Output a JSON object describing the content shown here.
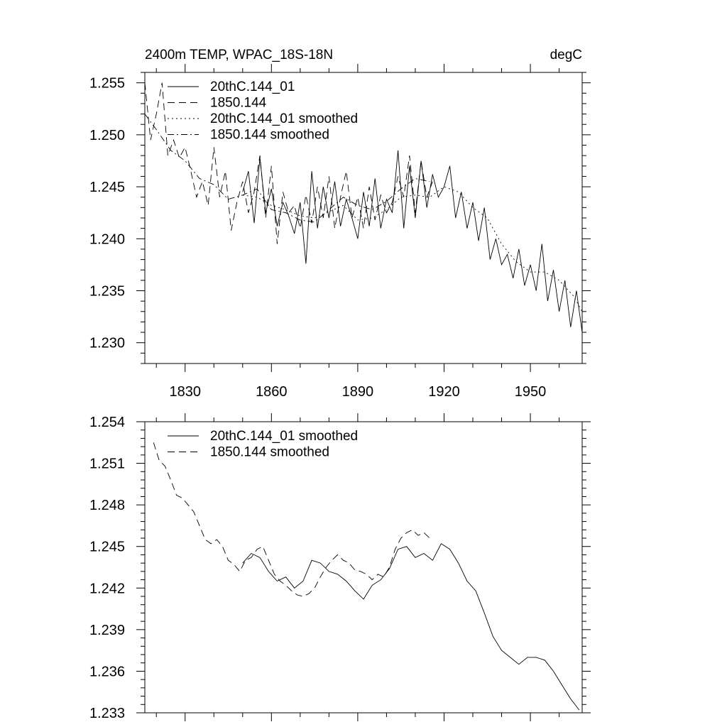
{
  "chart_data": [
    {
      "type": "line",
      "title": "2400m TEMP, WPAC_18S-18N",
      "units_label": "degC",
      "xlabel": "",
      "ylabel": "",
      "xlim": [
        1816,
        1968
      ],
      "ylim": [
        1.228,
        1.256
      ],
      "xticks": [
        1830,
        1860,
        1890,
        1920,
        1950
      ],
      "yticks": [
        1.23,
        1.235,
        1.24,
        1.245,
        1.25,
        1.255
      ],
      "ytick_labels": [
        "1.230",
        "1.235",
        "1.240",
        "1.245",
        "1.250",
        "1.255"
      ],
      "legend": [
        "20thC.144_01",
        "1850.144",
        "20thC.144_01 smoothed",
        "1850.144 smoothed"
      ],
      "series": [
        {
          "name": "20thC.144_01",
          "dash": "solid",
          "x": [
            1850,
            1852,
            1854,
            1856,
            1858,
            1860,
            1862,
            1864,
            1866,
            1868,
            1870,
            1872,
            1874,
            1876,
            1878,
            1880,
            1882,
            1884,
            1886,
            1888,
            1890,
            1892,
            1894,
            1896,
            1898,
            1900,
            1902,
            1904,
            1906,
            1908,
            1910,
            1912,
            1914,
            1916,
            1918,
            1920,
            1922,
            1924,
            1926,
            1928,
            1930,
            1932,
            1934,
            1936,
            1938,
            1940,
            1942,
            1944,
            1946,
            1948,
            1950,
            1952,
            1954,
            1956,
            1958,
            1960,
            1962,
            1964,
            1966,
            1968
          ],
          "values": [
            1.2445,
            1.2465,
            1.2415,
            1.2478,
            1.2425,
            1.2448,
            1.2412,
            1.2435,
            1.2422,
            1.2405,
            1.2435,
            1.2376,
            1.2465,
            1.241,
            1.245,
            1.242,
            1.2455,
            1.2412,
            1.2438,
            1.242,
            1.24,
            1.2445,
            1.2412,
            1.2458,
            1.241,
            1.2438,
            1.2425,
            1.2485,
            1.241,
            1.247,
            1.242,
            1.2475,
            1.243,
            1.2462,
            1.244,
            1.245,
            1.247,
            1.242,
            1.2445,
            1.241,
            1.2435,
            1.2398,
            1.243,
            1.238,
            1.24,
            1.2375,
            1.2385,
            1.2362,
            1.239,
            1.2355,
            1.2375,
            1.235,
            1.2395,
            1.234,
            1.237,
            1.233,
            1.236,
            1.2315,
            1.235,
            1.231
          ]
        },
        {
          "name": "1850.144",
          "dash": "long-dash",
          "x": [
            1816,
            1818,
            1820,
            1822,
            1824,
            1826,
            1828,
            1830,
            1832,
            1834,
            1836,
            1838,
            1840,
            1842,
            1844,
            1846,
            1848,
            1850,
            1852,
            1854,
            1856,
            1858,
            1860,
            1862,
            1864,
            1866,
            1868,
            1870,
            1872,
            1874,
            1876,
            1878,
            1880,
            1882,
            1884,
            1886,
            1888,
            1890,
            1892,
            1894,
            1896,
            1898,
            1900,
            1902,
            1904,
            1906,
            1908,
            1910,
            1912,
            1914,
            1916
          ],
          "values": [
            1.255,
            1.2495,
            1.252,
            1.255,
            1.248,
            1.2495,
            1.2478,
            1.2488,
            1.2465,
            1.244,
            1.2455,
            1.2432,
            1.2488,
            1.244,
            1.2465,
            1.2408,
            1.2435,
            1.2455,
            1.2425,
            1.2445,
            1.248,
            1.242,
            1.247,
            1.2395,
            1.2445,
            1.2425,
            1.2432,
            1.241,
            1.2442,
            1.2415,
            1.245,
            1.242,
            1.246,
            1.241,
            1.244,
            1.2465,
            1.242,
            1.244,
            1.241,
            1.245,
            1.2418,
            1.2442,
            1.2425,
            1.2435,
            1.246,
            1.244,
            1.248,
            1.2425,
            1.2475,
            1.244,
            1.2455
          ]
        },
        {
          "name": "20thC.144_01 smoothed",
          "dash": "dotted",
          "x": [
            1850,
            1855,
            1860,
            1865,
            1870,
            1875,
            1880,
            1885,
            1890,
            1895,
            1900,
            1905,
            1910,
            1915,
            1920,
            1925,
            1930,
            1935,
            1940,
            1945,
            1950,
            1955,
            1960,
            1965,
            1968
          ],
          "values": [
            1.2442,
            1.244,
            1.2432,
            1.2428,
            1.2422,
            1.242,
            1.2426,
            1.2432,
            1.2418,
            1.242,
            1.2428,
            1.244,
            1.2442,
            1.244,
            1.245,
            1.2445,
            1.243,
            1.242,
            1.2395,
            1.2378,
            1.2368,
            1.2368,
            1.236,
            1.2345,
            1.233
          ]
        },
        {
          "name": "1850.144 smoothed",
          "dash": "dash-dot",
          "x": [
            1816,
            1820,
            1825,
            1830,
            1835,
            1840,
            1845,
            1850,
            1855,
            1860,
            1865,
            1870,
            1875,
            1880,
            1885,
            1890,
            1895,
            1900,
            1905,
            1910,
            1915
          ],
          "values": [
            1.252,
            1.2505,
            1.2485,
            1.2475,
            1.2458,
            1.2452,
            1.2438,
            1.2442,
            1.2448,
            1.2428,
            1.2425,
            1.2418,
            1.2416,
            1.2428,
            1.244,
            1.2432,
            1.2428,
            1.2436,
            1.2448,
            1.2458,
            1.2455
          ]
        }
      ]
    },
    {
      "type": "line",
      "title": "",
      "xlabel": "",
      "ylabel": "",
      "xlim": [
        1816,
        1968
      ],
      "ylim": [
        1.233,
        1.254
      ],
      "xticks": [
        1830,
        1860,
        1890,
        1920,
        1950
      ],
      "yticks": [
        1.233,
        1.236,
        1.239,
        1.242,
        1.245,
        1.248,
        1.251,
        1.254
      ],
      "ytick_labels": [
        "1.233",
        "1.236",
        "1.239",
        "1.242",
        "1.245",
        "1.248",
        "1.251",
        "1.254"
      ],
      "legend": [
        "20thC.144_01 smoothed",
        "1850.144 smoothed"
      ],
      "series": [
        {
          "name": "20thC.144_01 smoothed",
          "dash": "solid",
          "x": [
            1850,
            1853,
            1856,
            1859,
            1862,
            1865,
            1868,
            1871,
            1874,
            1877,
            1880,
            1883,
            1886,
            1889,
            1892,
            1895,
            1898,
            1901,
            1904,
            1907,
            1910,
            1913,
            1916,
            1919,
            1922,
            1925,
            1928,
            1931,
            1934,
            1937,
            1940,
            1943,
            1946,
            1949,
            1952,
            1955,
            1958,
            1961,
            1964,
            1967
          ],
          "values": [
            1.2438,
            1.2445,
            1.2442,
            1.2432,
            1.2425,
            1.2428,
            1.242,
            1.2425,
            1.244,
            1.2438,
            1.2432,
            1.243,
            1.2425,
            1.2418,
            1.2412,
            1.2422,
            1.2426,
            1.2434,
            1.2448,
            1.245,
            1.2442,
            1.2445,
            1.244,
            1.2452,
            1.2448,
            1.2438,
            1.2425,
            1.2418,
            1.2402,
            1.2385,
            1.2375,
            1.237,
            1.2365,
            1.237,
            1.237,
            1.2368,
            1.236,
            1.235,
            1.234,
            1.2332
          ]
        },
        {
          "name": "1850.144 smoothed",
          "dash": "long-dash",
          "x": [
            1819,
            1821,
            1823,
            1825,
            1827,
            1829,
            1831,
            1833,
            1835,
            1837,
            1839,
            1841,
            1843,
            1845,
            1847,
            1849,
            1851,
            1853,
            1855,
            1857,
            1859,
            1861,
            1863,
            1865,
            1867,
            1869,
            1871,
            1873,
            1875,
            1877,
            1879,
            1881,
            1883,
            1885,
            1887,
            1889,
            1891,
            1893,
            1895,
            1897,
            1899,
            1901,
            1903,
            1905,
            1907,
            1909,
            1911,
            1913,
            1915
          ],
          "values": [
            1.2525,
            1.2512,
            1.2508,
            1.2498,
            1.2487,
            1.2485,
            1.248,
            1.2475,
            1.2465,
            1.2455,
            1.2452,
            1.2455,
            1.245,
            1.244,
            1.2437,
            1.2432,
            1.244,
            1.2442,
            1.2448,
            1.245,
            1.244,
            1.243,
            1.2425,
            1.2422,
            1.2418,
            1.2415,
            1.2414,
            1.2416,
            1.242,
            1.2428,
            1.2435,
            1.244,
            1.2444,
            1.244,
            1.2438,
            1.2433,
            1.2432,
            1.243,
            1.2426,
            1.243,
            1.2428,
            1.2435,
            1.2448,
            1.2456,
            1.246,
            1.2462,
            1.2458,
            1.246,
            1.2456
          ]
        }
      ]
    }
  ]
}
